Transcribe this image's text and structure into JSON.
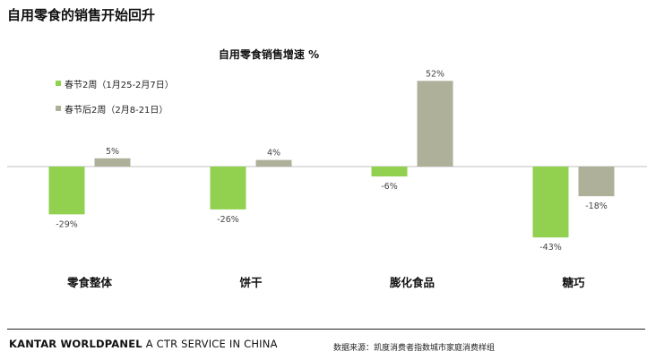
{
  "page": {
    "title": "自用零食的销售开始回升",
    "brand_name": "KANTAR WORLDPANEL",
    "brand_tagline": "A CTR SERVICE IN CHINA",
    "source": "数据来源：凯度消费者指数城市家庭消费样组"
  },
  "colors": {
    "series1": "#92d050",
    "series2": "#aeb09a",
    "axis": "#c0c0c0"
  },
  "chart_data": {
    "type": "bar",
    "title": "自用零食销售增速 %",
    "categories": [
      "零食整体",
      "饼干",
      "膨化食品",
      "糖巧"
    ],
    "series": [
      {
        "name": "春节2周（1月25-2月7日）",
        "values": [
          -29,
          -26,
          -6,
          -43
        ],
        "labels": [
          "-29%",
          "-26%",
          "-6%",
          "-43%"
        ]
      },
      {
        "name": "春节后2周（2月8-21日）",
        "values": [
          5,
          4,
          52,
          -18
        ],
        "labels": [
          "5%",
          "4%",
          "52%",
          "-18%"
        ]
      }
    ],
    "ylim": [
      -60,
      60
    ],
    "grid": false,
    "legend_position": "top-left",
    "xlabel": "",
    "ylabel": ""
  }
}
